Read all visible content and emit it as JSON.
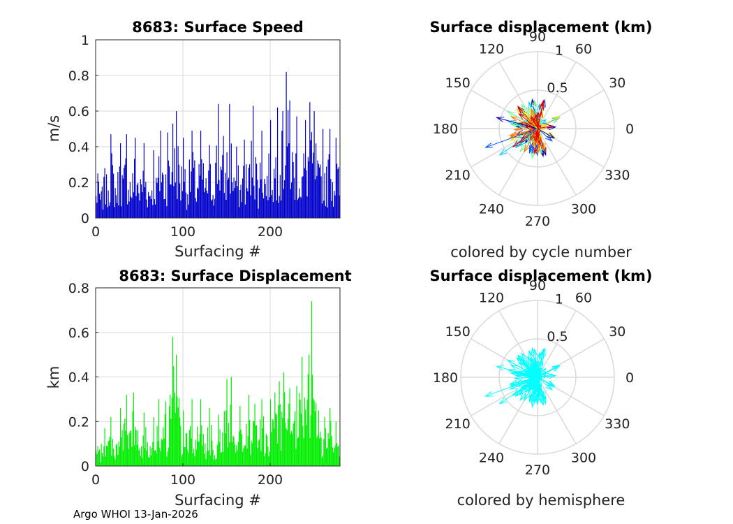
{
  "footer": "Argo WHOI 13-Jan-2026",
  "colors": {
    "speed_bars": "#0000cc",
    "disp_bars": "#00ee00",
    "grid": "#d9d9d9",
    "axis": "#262626",
    "cyan": "#00ffff"
  },
  "chart_data": [
    {
      "id": "speed",
      "type": "bar",
      "title": "8683: Surface Speed",
      "xlabel": "Surfacing #",
      "ylabel": "m/s",
      "xlim": [
        0,
        280
      ],
      "ylim": [
        0,
        1
      ],
      "xticks": [
        0,
        100,
        200
      ],
      "yticks": [
        0,
        0.2,
        0.4,
        0.6,
        0.8,
        1
      ],
      "ytick_labels": [
        "0",
        "0.2",
        "0.4",
        "0.6",
        "0.8",
        "1"
      ],
      "grid": true,
      "n_surfacings": 280,
      "peaks": [
        {
          "x": 2,
          "y": 0.25
        },
        {
          "x": 10,
          "y": 0.28
        },
        {
          "x": 17,
          "y": 0.47
        },
        {
          "x": 28,
          "y": 0.42
        },
        {
          "x": 35,
          "y": 0.47
        },
        {
          "x": 45,
          "y": 0.45
        },
        {
          "x": 55,
          "y": 0.42
        },
        {
          "x": 66,
          "y": 0.38
        },
        {
          "x": 74,
          "y": 0.49
        },
        {
          "x": 82,
          "y": 0.48
        },
        {
          "x": 88,
          "y": 0.53
        },
        {
          "x": 92,
          "y": 0.6
        },
        {
          "x": 100,
          "y": 0.45
        },
        {
          "x": 110,
          "y": 0.49
        },
        {
          "x": 120,
          "y": 0.49
        },
        {
          "x": 130,
          "y": 0.41
        },
        {
          "x": 140,
          "y": 0.64
        },
        {
          "x": 146,
          "y": 0.46
        },
        {
          "x": 153,
          "y": 0.64
        },
        {
          "x": 161,
          "y": 0.4
        },
        {
          "x": 170,
          "y": 0.44
        },
        {
          "x": 180,
          "y": 0.63
        },
        {
          "x": 190,
          "y": 0.49
        },
        {
          "x": 200,
          "y": 0.55
        },
        {
          "x": 208,
          "y": 0.62
        },
        {
          "x": 214,
          "y": 0.6
        },
        {
          "x": 218,
          "y": 0.82
        },
        {
          "x": 222,
          "y": 0.66
        },
        {
          "x": 230,
          "y": 0.57
        },
        {
          "x": 240,
          "y": 0.55
        },
        {
          "x": 245,
          "y": 0.65
        },
        {
          "x": 250,
          "y": 0.6
        },
        {
          "x": 260,
          "y": 0.5
        },
        {
          "x": 268,
          "y": 0.5
        },
        {
          "x": 275,
          "y": 0.45
        }
      ]
    },
    {
      "id": "displacement",
      "type": "bar",
      "title": "8683: Surface Displacement",
      "xlabel": "Surfacing #",
      "ylabel": "km",
      "xlim": [
        0,
        280
      ],
      "ylim": [
        0,
        0.8
      ],
      "xticks": [
        0,
        100,
        200
      ],
      "yticks": [
        0,
        0.2,
        0.4,
        0.6,
        0.8
      ],
      "ytick_labels": [
        "0",
        "0.2",
        "0.4",
        "0.6",
        "0.8"
      ],
      "grid": true,
      "n_surfacings": 280,
      "peaks": [
        {
          "x": 2,
          "y": 0.09
        },
        {
          "x": 10,
          "y": 0.17
        },
        {
          "x": 17,
          "y": 0.22
        },
        {
          "x": 28,
          "y": 0.26
        },
        {
          "x": 35,
          "y": 0.32
        },
        {
          "x": 43,
          "y": 0.33
        },
        {
          "x": 55,
          "y": 0.24
        },
        {
          "x": 66,
          "y": 0.22
        },
        {
          "x": 72,
          "y": 0.3
        },
        {
          "x": 80,
          "y": 0.29
        },
        {
          "x": 88,
          "y": 0.58
        },
        {
          "x": 92,
          "y": 0.5
        },
        {
          "x": 100,
          "y": 0.25
        },
        {
          "x": 110,
          "y": 0.3
        },
        {
          "x": 120,
          "y": 0.3
        },
        {
          "x": 130,
          "y": 0.26
        },
        {
          "x": 140,
          "y": 0.23
        },
        {
          "x": 150,
          "y": 0.39
        },
        {
          "x": 155,
          "y": 0.4
        },
        {
          "x": 165,
          "y": 0.27
        },
        {
          "x": 175,
          "y": 0.32
        },
        {
          "x": 182,
          "y": 0.28
        },
        {
          "x": 190,
          "y": 0.3
        },
        {
          "x": 200,
          "y": 0.3
        },
        {
          "x": 205,
          "y": 0.33
        },
        {
          "x": 210,
          "y": 0.38
        },
        {
          "x": 215,
          "y": 0.42
        },
        {
          "x": 222,
          "y": 0.35
        },
        {
          "x": 230,
          "y": 0.36
        },
        {
          "x": 236,
          "y": 0.49
        },
        {
          "x": 244,
          "y": 0.5
        },
        {
          "x": 247,
          "y": 0.74
        },
        {
          "x": 255,
          "y": 0.25
        },
        {
          "x": 262,
          "y": 0.22
        },
        {
          "x": 268,
          "y": 0.26
        },
        {
          "x": 275,
          "y": 0.2
        }
      ]
    },
    {
      "id": "polar-cycle",
      "type": "polar-vectors",
      "title": "Surface displacement (km)",
      "xlabel": "colored by cycle number",
      "rlim": [
        0,
        1
      ],
      "rticks": [
        0.5,
        1
      ],
      "rtick_labels": [
        "0.5",
        "1"
      ],
      "theta_ticks": [
        0,
        30,
        60,
        90,
        120,
        150,
        180,
        210,
        240,
        270,
        300,
        330
      ],
      "coloring": "cycle number",
      "colormap": [
        "#0000aa",
        "#0055ff",
        "#00ccff",
        "#66ff99",
        "#ffdd00",
        "#ff7700",
        "#dd0000"
      ],
      "highlight_vectors": [
        {
          "theta": 165,
          "r": 0.55
        },
        {
          "theta": 200,
          "r": 0.72
        },
        {
          "theta": 215,
          "r": 0.6
        },
        {
          "theta": 150,
          "r": 0.45
        },
        {
          "theta": 130,
          "r": 0.3
        },
        {
          "theta": 240,
          "r": 0.35
        },
        {
          "theta": 10,
          "r": 0.2
        },
        {
          "theta": 330,
          "r": 0.25
        }
      ]
    },
    {
      "id": "polar-hemisphere",
      "type": "polar-vectors",
      "title": "Surface displacement (km)",
      "xlabel": "colored by hemisphere",
      "rlim": [
        0,
        1
      ],
      "rticks": [
        0.5,
        1
      ],
      "rtick_labels": [
        "0.5",
        "1"
      ],
      "theta_ticks": [
        0,
        30,
        60,
        90,
        120,
        150,
        180,
        210,
        240,
        270,
        300,
        330
      ],
      "coloring": "hemisphere",
      "colormap": [
        "#00ffff"
      ],
      "highlight_vectors": [
        {
          "theta": 165,
          "r": 0.55
        },
        {
          "theta": 200,
          "r": 0.72
        },
        {
          "theta": 215,
          "r": 0.6
        },
        {
          "theta": 150,
          "r": 0.45
        },
        {
          "theta": 130,
          "r": 0.3
        },
        {
          "theta": 240,
          "r": 0.35
        },
        {
          "theta": 10,
          "r": 0.2
        },
        {
          "theta": 330,
          "r": 0.25
        }
      ]
    }
  ]
}
